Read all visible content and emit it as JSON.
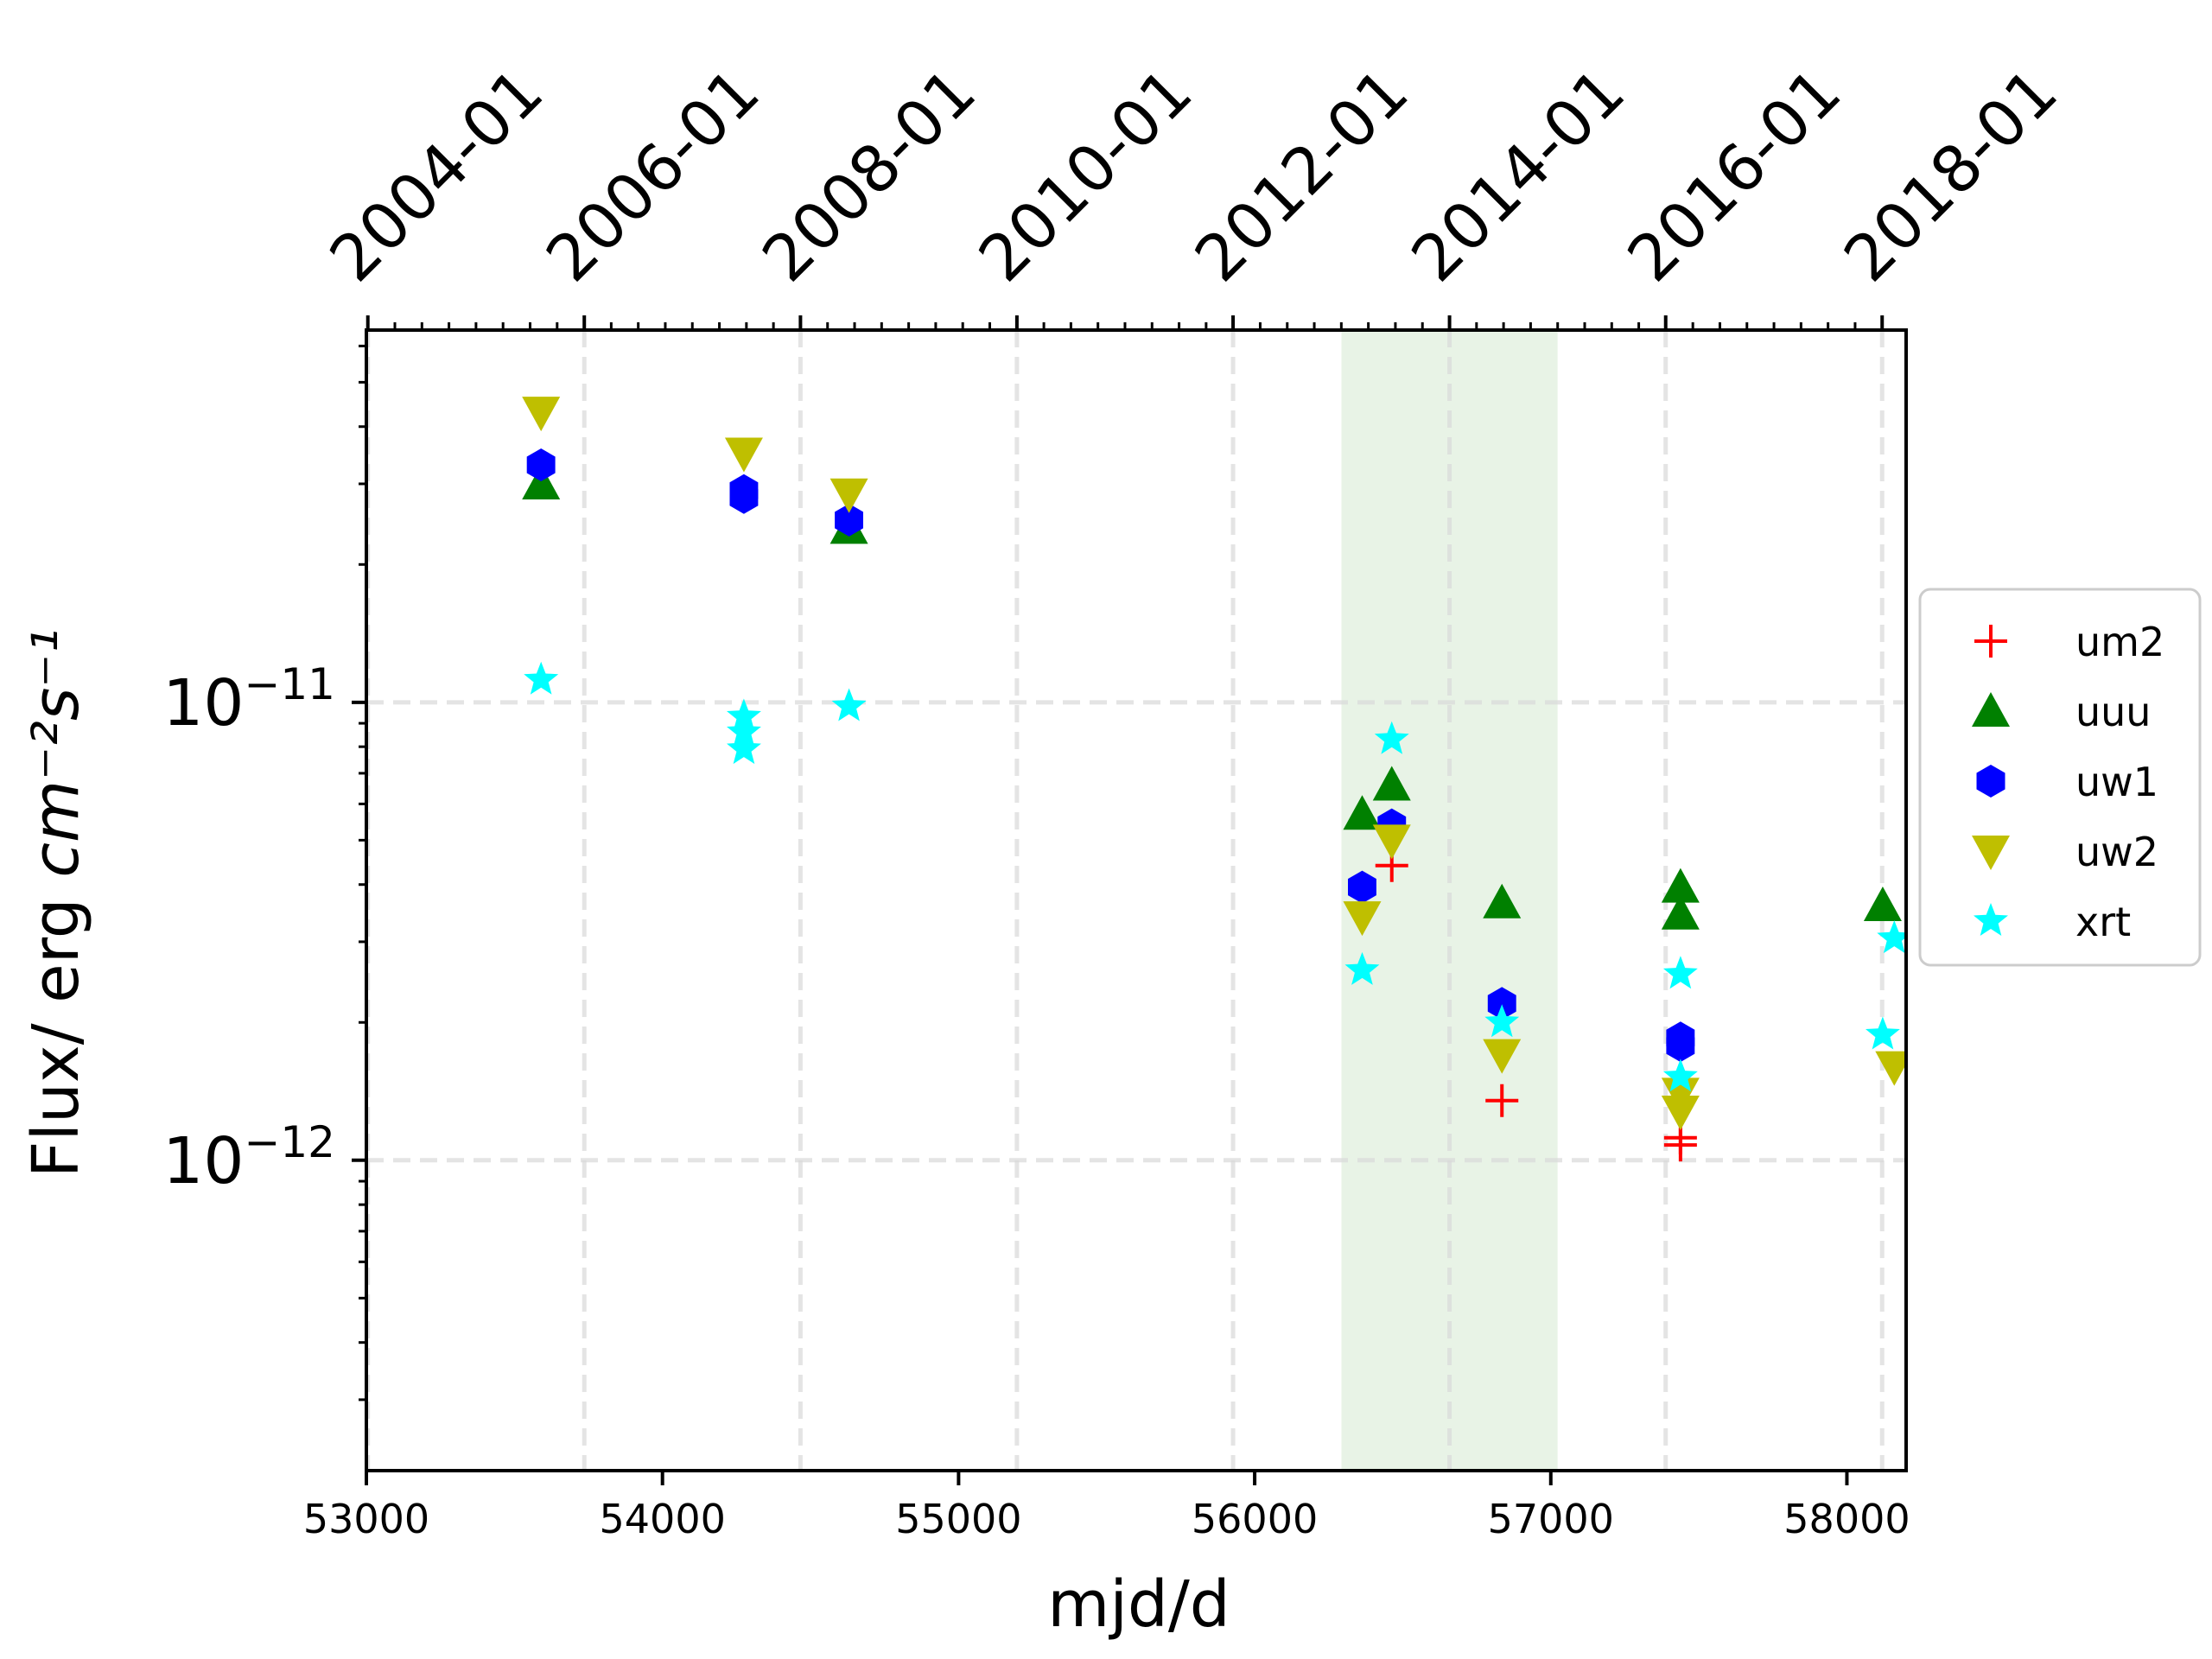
{
  "chart_data": {
    "type": "scatter",
    "xlabel": "mjd/d",
    "ylabel": "Flux/ erg",
    "ylabel_units": "cm⁻²s⁻¹",
    "x_range": [
      53000,
      58200
    ],
    "y_range": [
      2.1e-13,
      6.5e-11
    ],
    "y_scale": "log",
    "x_ticks": [
      {
        "value": 53000,
        "label": "53000"
      },
      {
        "value": 54000,
        "label": "54000"
      },
      {
        "value": 55000,
        "label": "55000"
      },
      {
        "value": 56000,
        "label": "56000"
      },
      {
        "value": 57000,
        "label": "57000"
      },
      {
        "value": 58000,
        "label": "58000"
      }
    ],
    "y_ticks": [
      {
        "value": 1e-11,
        "base": "10",
        "exponent": "−11"
      },
      {
        "value": 1e-12,
        "base": "10",
        "exponent": "−12"
      }
    ],
    "top_axis_ticks": [
      {
        "value": 53005,
        "label": "2004-01"
      },
      {
        "value": 53736,
        "label": "2006-01"
      },
      {
        "value": 54466,
        "label": "2008-01"
      },
      {
        "value": 55197,
        "label": "2010-01"
      },
      {
        "value": 55927,
        "label": "2012-01"
      },
      {
        "value": 56658,
        "label": "2014-01"
      },
      {
        "value": 57388,
        "label": "2016-01"
      },
      {
        "value": 58119,
        "label": "2018-01"
      }
    ],
    "grid": true,
    "shaded_region": {
      "x_from": 56293,
      "x_to": 57023,
      "color": "#e8f3e6"
    },
    "legend_position": "right",
    "series": [
      {
        "name": "um2",
        "marker": "plus",
        "color": "#ff0000",
        "x": [
          56463,
          56835,
          57438,
          57438
        ],
        "y": [
          4.4e-12,
          1.35e-12,
          1.12e-12,
          1.08e-12
        ]
      },
      {
        "name": "uuu",
        "marker": "triangle-up",
        "color": "#008000",
        "x": [
          53590,
          54630,
          56363,
          56463,
          56835,
          57438,
          57438,
          58121
        ],
        "y": [
          3e-11,
          2.4e-11,
          5.7e-12,
          6.6e-12,
          3.65e-12,
          3.95e-12,
          3.45e-12,
          3.6e-12
        ]
      },
      {
        "name": "uw1",
        "marker": "hexagon",
        "color": "#0000ff",
        "x": [
          53590,
          54275,
          54275,
          54630,
          56363,
          56463,
          56835,
          57438,
          57438
        ],
        "y": [
          3.3e-11,
          2.9e-11,
          2.8e-11,
          2.5e-11,
          3.95e-12,
          5.4e-12,
          2.2e-12,
          1.85e-12,
          1.78e-12
        ]
      },
      {
        "name": "uw2",
        "marker": "triangle-down",
        "color": "#bfbf00",
        "x": [
          53590,
          54275,
          54630,
          56363,
          56463,
          56835,
          57438,
          57438,
          58160
        ],
        "y": [
          4.3e-11,
          3.5e-11,
          2.85e-11,
          3.4e-12,
          5e-12,
          1.7e-12,
          1.4e-12,
          1.28e-12,
          1.6e-12
        ]
      },
      {
        "name": "xrt",
        "marker": "star",
        "color": "#00ffff",
        "x": [
          53590,
          54275,
          54275,
          54275,
          54630,
          56363,
          56463,
          56835,
          57438,
          57438,
          58121,
          58160
        ],
        "y": [
          1.12e-11,
          9.3e-12,
          8.6e-12,
          7.9e-12,
          9.8e-12,
          2.6e-12,
          8.3e-12,
          2e-12,
          2.55e-12,
          1.52e-12,
          1.88e-12,
          3.05e-12
        ]
      }
    ]
  }
}
